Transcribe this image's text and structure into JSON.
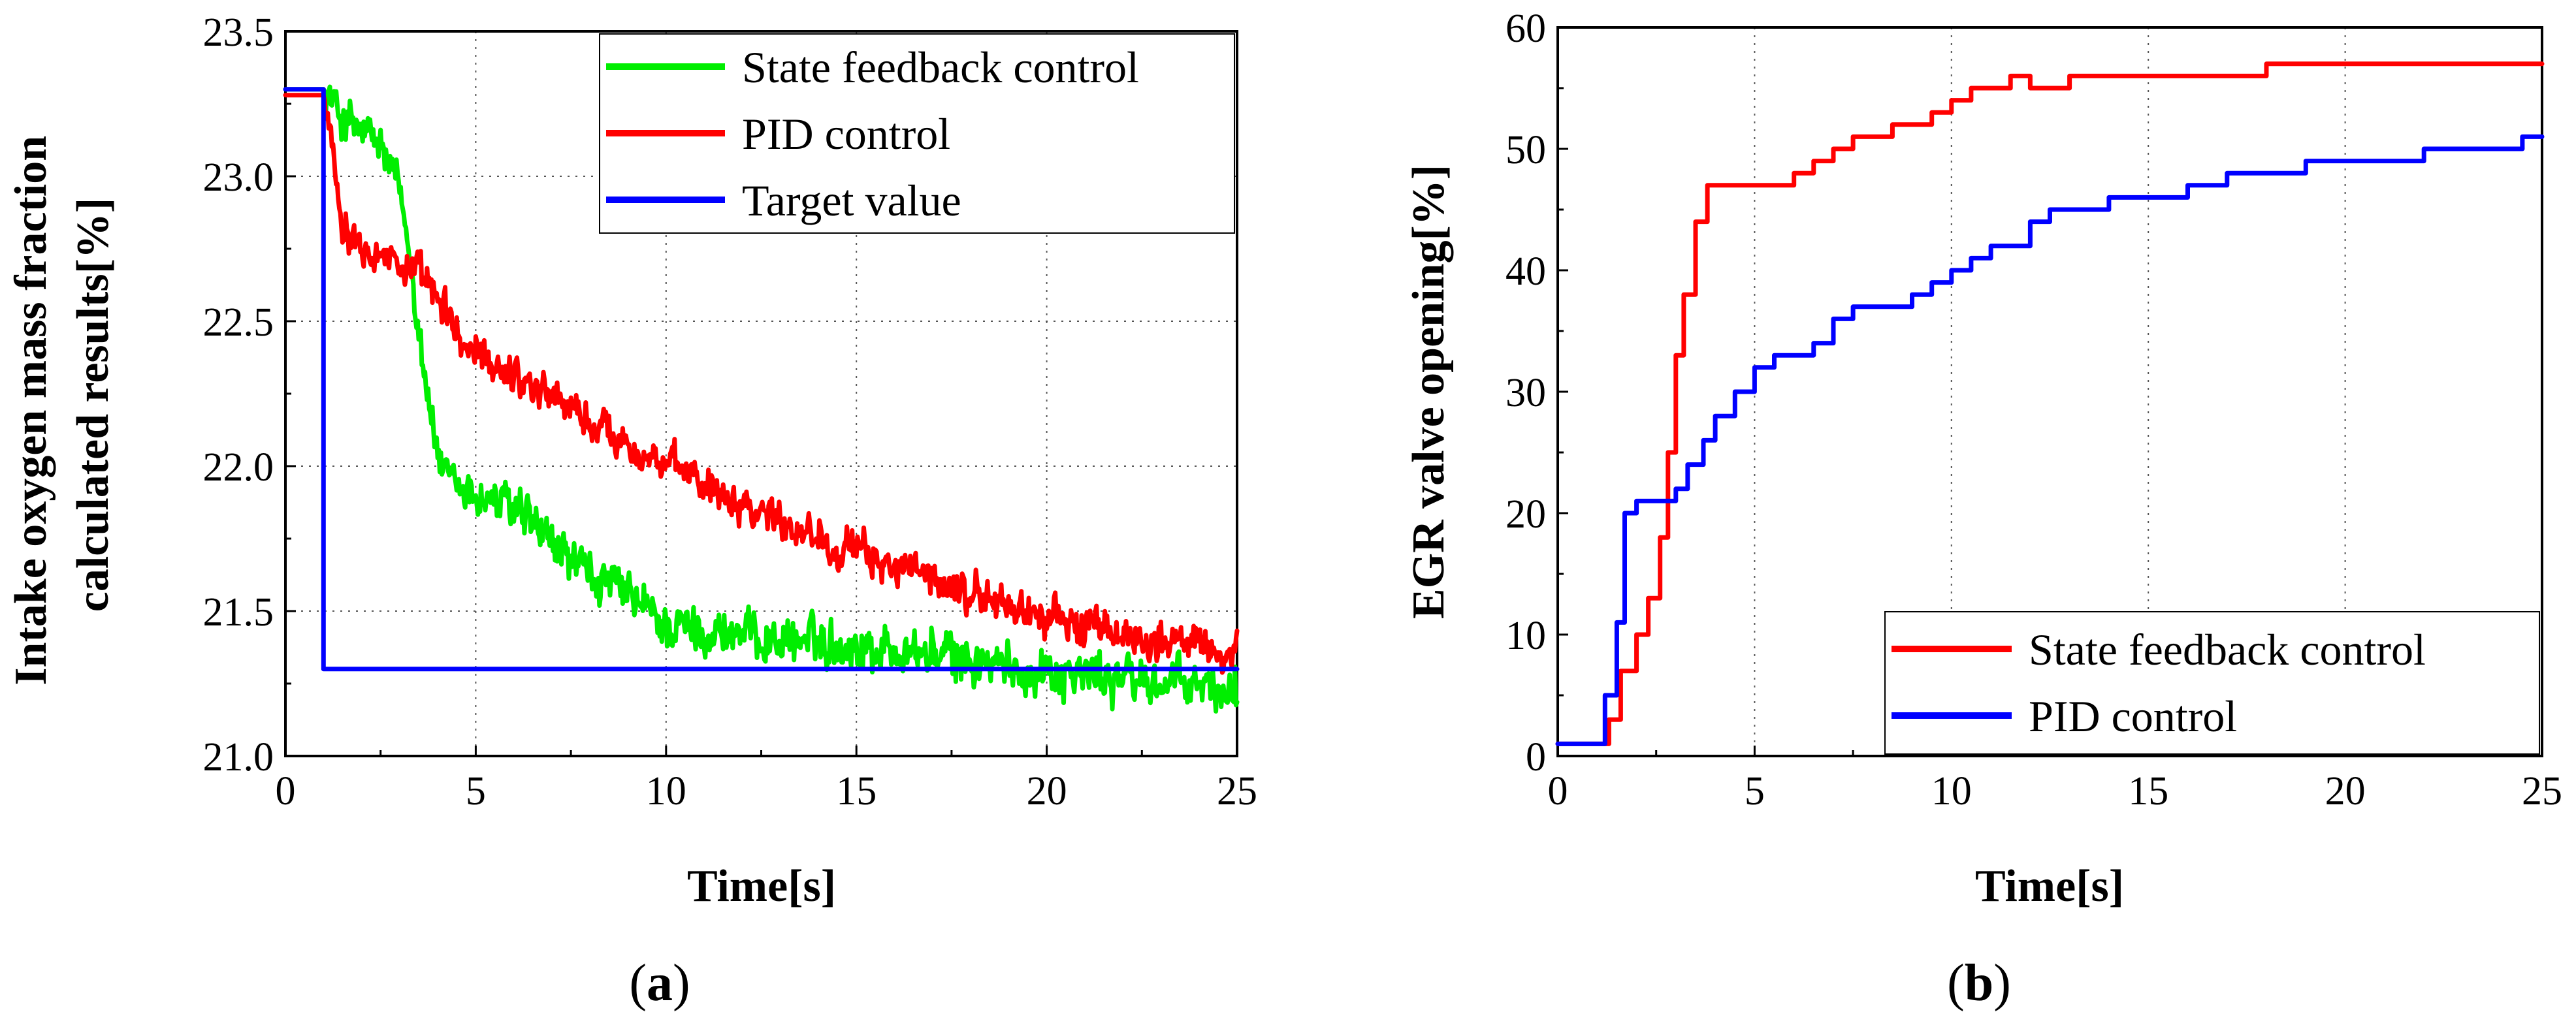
{
  "chart_data": [
    {
      "id": "a",
      "type": "line",
      "panel_label": "a",
      "panel_label_open": "(",
      "panel_label_close": ")",
      "xlabel": "Time[s]",
      "ylabel_lines": [
        "Intake oxygen mass fraction",
        "calculated results[%]"
      ],
      "xlim": [
        0,
        25
      ],
      "ylim": [
        21.0,
        23.5
      ],
      "xticks": [
        0,
        5,
        10,
        15,
        20,
        25
      ],
      "xtick_labels": [
        "0",
        "5",
        "10",
        "15",
        "20",
        "25"
      ],
      "yticks": [
        21.0,
        21.5,
        22.0,
        22.5,
        23.0,
        23.5
      ],
      "ytick_labels": [
        "21.0",
        "21.5",
        "22.0",
        "22.5",
        "23.0",
        "23.5"
      ],
      "grid": "dotted",
      "legend_position": "top-right",
      "series": [
        {
          "name": "State feedback control",
          "color": "#00ee00",
          "noise": 0.06,
          "x": [
            0,
            1.0,
            1.5,
            2.0,
            2.5,
            3.0,
            3.3,
            3.6,
            3.9,
            4.2,
            4.6,
            5.0,
            5.5,
            6.0,
            6.5,
            7.0,
            7.5,
            8.0,
            9.0,
            10.0,
            11.0,
            12.0,
            13.0,
            14.0,
            15.0,
            16.0,
            17.0,
            18.0,
            19.0,
            20.0,
            21.0,
            22.0,
            23.0,
            24.0,
            25.0
          ],
          "y": [
            23.3,
            23.3,
            23.2,
            23.15,
            23.1,
            22.95,
            22.7,
            22.4,
            22.1,
            21.95,
            21.92,
            21.9,
            21.88,
            21.85,
            21.8,
            21.72,
            21.68,
            21.62,
            21.55,
            21.45,
            21.43,
            21.42,
            21.4,
            21.4,
            21.38,
            21.37,
            21.35,
            21.33,
            21.3,
            21.3,
            21.28,
            21.27,
            21.25,
            21.24,
            21.22
          ]
        },
        {
          "name": "PID control",
          "color": "#ff0000",
          "noise": 0.05,
          "x": [
            0,
            1.0,
            1.2,
            1.5,
            2.0,
            2.5,
            3.0,
            3.5,
            4.0,
            4.5,
            5.0,
            6.0,
            7.0,
            8.0,
            9.0,
            10.0,
            11.0,
            12.0,
            13.0,
            14.0,
            15.0,
            16.0,
            17.0,
            18.0,
            19.0,
            20.0,
            21.0,
            22.0,
            23.0,
            24.0,
            25.0
          ],
          "y": [
            23.28,
            23.28,
            23.15,
            22.85,
            22.78,
            22.75,
            22.7,
            22.65,
            22.58,
            22.45,
            22.38,
            22.32,
            22.25,
            22.15,
            22.08,
            22.0,
            21.95,
            21.88,
            21.82,
            21.76,
            21.7,
            21.66,
            21.6,
            21.56,
            21.52,
            21.48,
            21.45,
            21.42,
            21.4,
            21.38,
            21.35
          ]
        },
        {
          "name": "Target value",
          "color": "#0000ff",
          "noise": 0,
          "x": [
            0,
            1.0,
            1.0,
            25.0
          ],
          "y": [
            23.3,
            23.3,
            21.3,
            21.3
          ]
        }
      ]
    },
    {
      "id": "b",
      "type": "line",
      "panel_label": "b",
      "panel_label_open": "(",
      "panel_label_close": ")",
      "xlabel": "Time[s]",
      "ylabel_lines": [
        "EGR valve opening[%]"
      ],
      "xlim": [
        0,
        25
      ],
      "ylim": [
        0,
        60
      ],
      "xticks": [
        0,
        5,
        10,
        15,
        20,
        25
      ],
      "xtick_labels": [
        "0",
        "5",
        "10",
        "15",
        "20",
        "25"
      ],
      "yticks": [
        0,
        10,
        20,
        30,
        40,
        50,
        60
      ],
      "ytick_labels": [
        "0",
        "10",
        "20",
        "30",
        "40",
        "50",
        "60"
      ],
      "grid": "dotted-x",
      "legend_position": "bottom-right",
      "series": [
        {
          "name": "State feedback control",
          "color": "#ff0000",
          "noise": 0,
          "x": [
            0,
            1.1,
            1.3,
            1.6,
            2.0,
            2.3,
            2.6,
            2.8,
            3.0,
            3.2,
            3.5,
            3.8,
            4.0,
            5.0,
            5.8,
            6.0,
            6.5,
            7.0,
            7.5,
            8.0,
            8.5,
            9.0,
            9.5,
            10.0,
            10.5,
            11.0,
            11.5,
            12.0,
            12.5,
            13.0,
            14.0,
            15.0,
            16.0,
            17.0,
            17.8,
            18.0,
            25.0
          ],
          "y": [
            1,
            1,
            3,
            7,
            10,
            13,
            18,
            25,
            33,
            38,
            44,
            47,
            47,
            47,
            47,
            48,
            49,
            50,
            51,
            51,
            52,
            52,
            53,
            54,
            55,
            55,
            56,
            55,
            55,
            56,
            56,
            56,
            56,
            56,
            56,
            57,
            57
          ]
        },
        {
          "name": "PID control",
          "color": "#0000ff",
          "noise": 0,
          "x": [
            0,
            1.0,
            1.2,
            1.5,
            1.7,
            2.0,
            2.5,
            2.7,
            3.0,
            3.3,
            3.7,
            4.0,
            4.5,
            5.0,
            5.5,
            6.0,
            6.5,
            7.0,
            7.5,
            8.0,
            9.0,
            9.5,
            10.0,
            10.5,
            11.0,
            11.5,
            12.0,
            12.5,
            13.0,
            14.0,
            15.0,
            16.0,
            17.0,
            18.0,
            19.0,
            20.0,
            21.0,
            22.0,
            23.0,
            24.0,
            24.5,
            25.0
          ],
          "y": [
            1,
            1,
            5,
            11,
            20,
            21,
            21,
            21,
            22,
            24,
            26,
            28,
            30,
            32,
            33,
            33,
            34,
            36,
            37,
            37,
            38,
            39,
            40,
            41,
            42,
            42,
            44,
            45,
            45,
            46,
            46,
            47,
            48,
            48,
            49,
            49,
            49,
            50,
            50,
            50,
            51,
            51
          ]
        }
      ]
    }
  ]
}
